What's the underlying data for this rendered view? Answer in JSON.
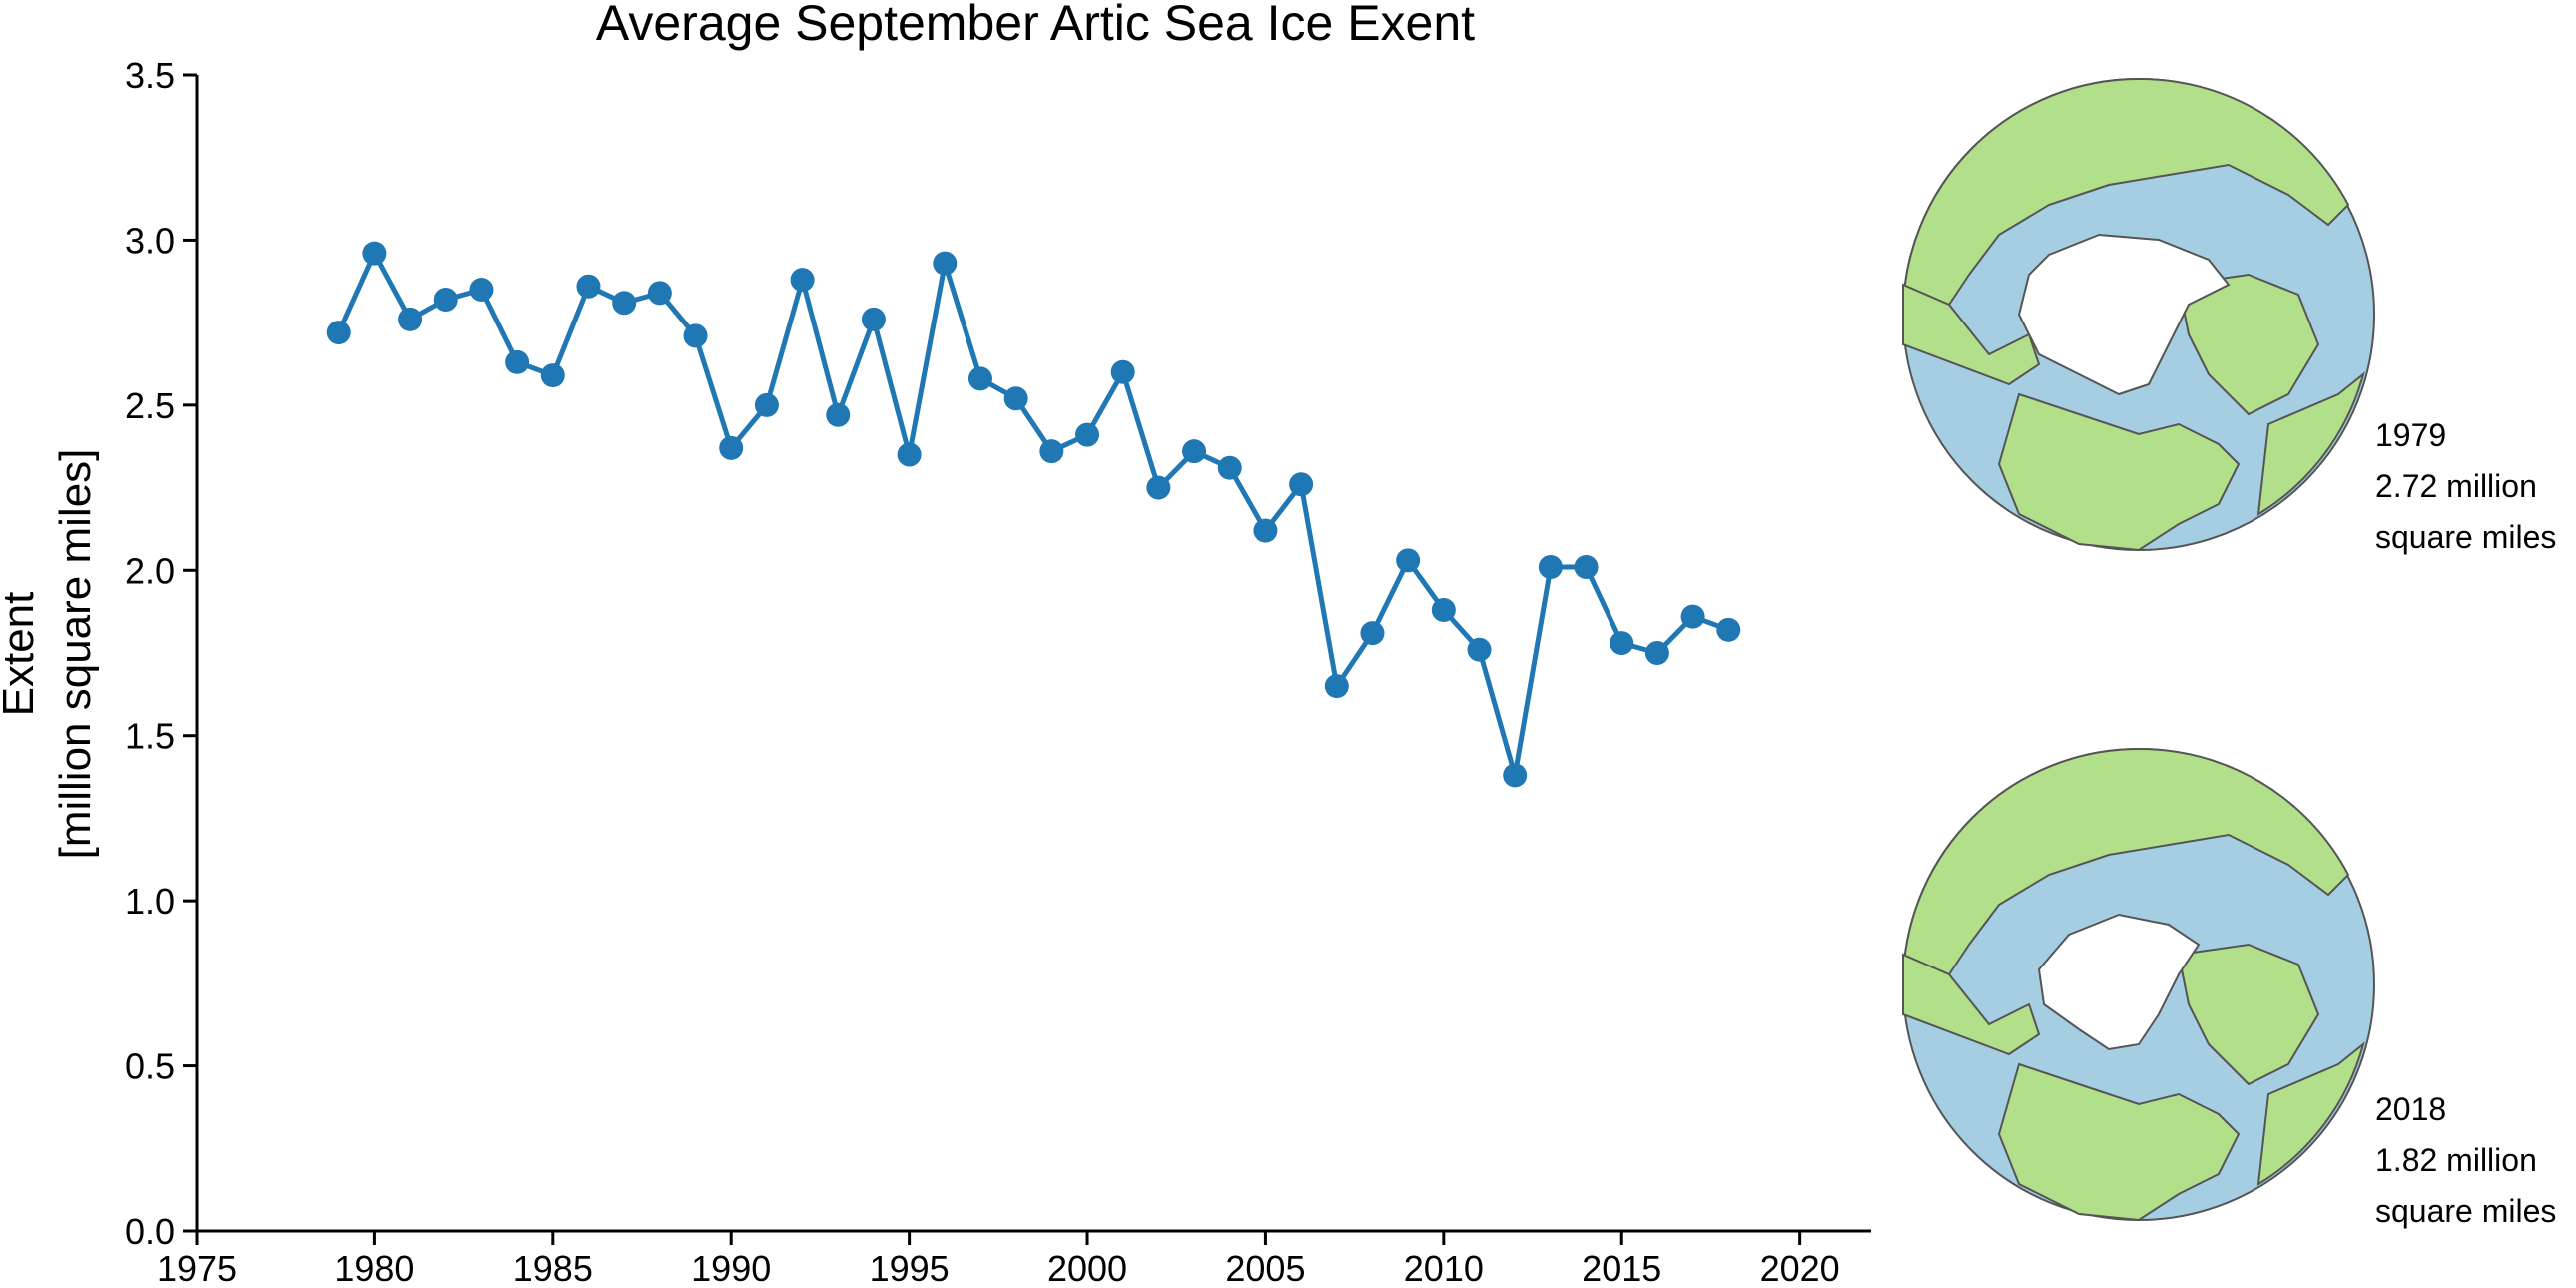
{
  "chart_data": {
    "type": "line",
    "title": "Average September Artic Sea Ice Exent",
    "xlabel": "",
    "ylabel_line1": "Extent",
    "ylabel_line2": "[million square miles]",
    "xlim": [
      1975,
      2022
    ],
    "ylim": [
      0,
      3.5
    ],
    "xticks": [
      "1975",
      "1980",
      "1985",
      "1990",
      "1995",
      "2000",
      "2005",
      "2010",
      "2015",
      "2020"
    ],
    "yticks": [
      "0.0",
      "0.5",
      "1.0",
      "1.5",
      "2.0",
      "2.5",
      "3.0",
      "3.5"
    ],
    "grid": false,
    "line_color": "#1f77b4",
    "x": [
      1979,
      1980,
      1981,
      1982,
      1983,
      1984,
      1985,
      1986,
      1987,
      1988,
      1989,
      1990,
      1991,
      1992,
      1993,
      1994,
      1995,
      1996,
      1997,
      1998,
      1999,
      2000,
      2001,
      2002,
      2003,
      2004,
      2005,
      2006,
      2007,
      2008,
      2009,
      2010,
      2011,
      2012,
      2013,
      2014,
      2015,
      2016,
      2017,
      2018
    ],
    "y": [
      2.72,
      2.96,
      2.76,
      2.82,
      2.85,
      2.63,
      2.59,
      2.86,
      2.81,
      2.84,
      2.71,
      2.37,
      2.5,
      2.88,
      2.47,
      2.76,
      2.35,
      2.93,
      2.58,
      2.52,
      2.36,
      2.41,
      2.6,
      2.25,
      2.36,
      2.31,
      2.12,
      2.26,
      1.65,
      1.81,
      2.03,
      1.88,
      1.76,
      1.38,
      2.01,
      2.01,
      1.78,
      1.75,
      1.86,
      1.82
    ]
  },
  "insets": [
    {
      "year": "1979",
      "value": "2.72 million",
      "unit": "square miles"
    },
    {
      "year": "2018",
      "value": "1.82 million",
      "unit": "square miles"
    }
  ],
  "colors": {
    "land": "#b2df8a",
    "ocean": "#a6cee3",
    "ice": "#ffffff",
    "outline": "#555555"
  }
}
